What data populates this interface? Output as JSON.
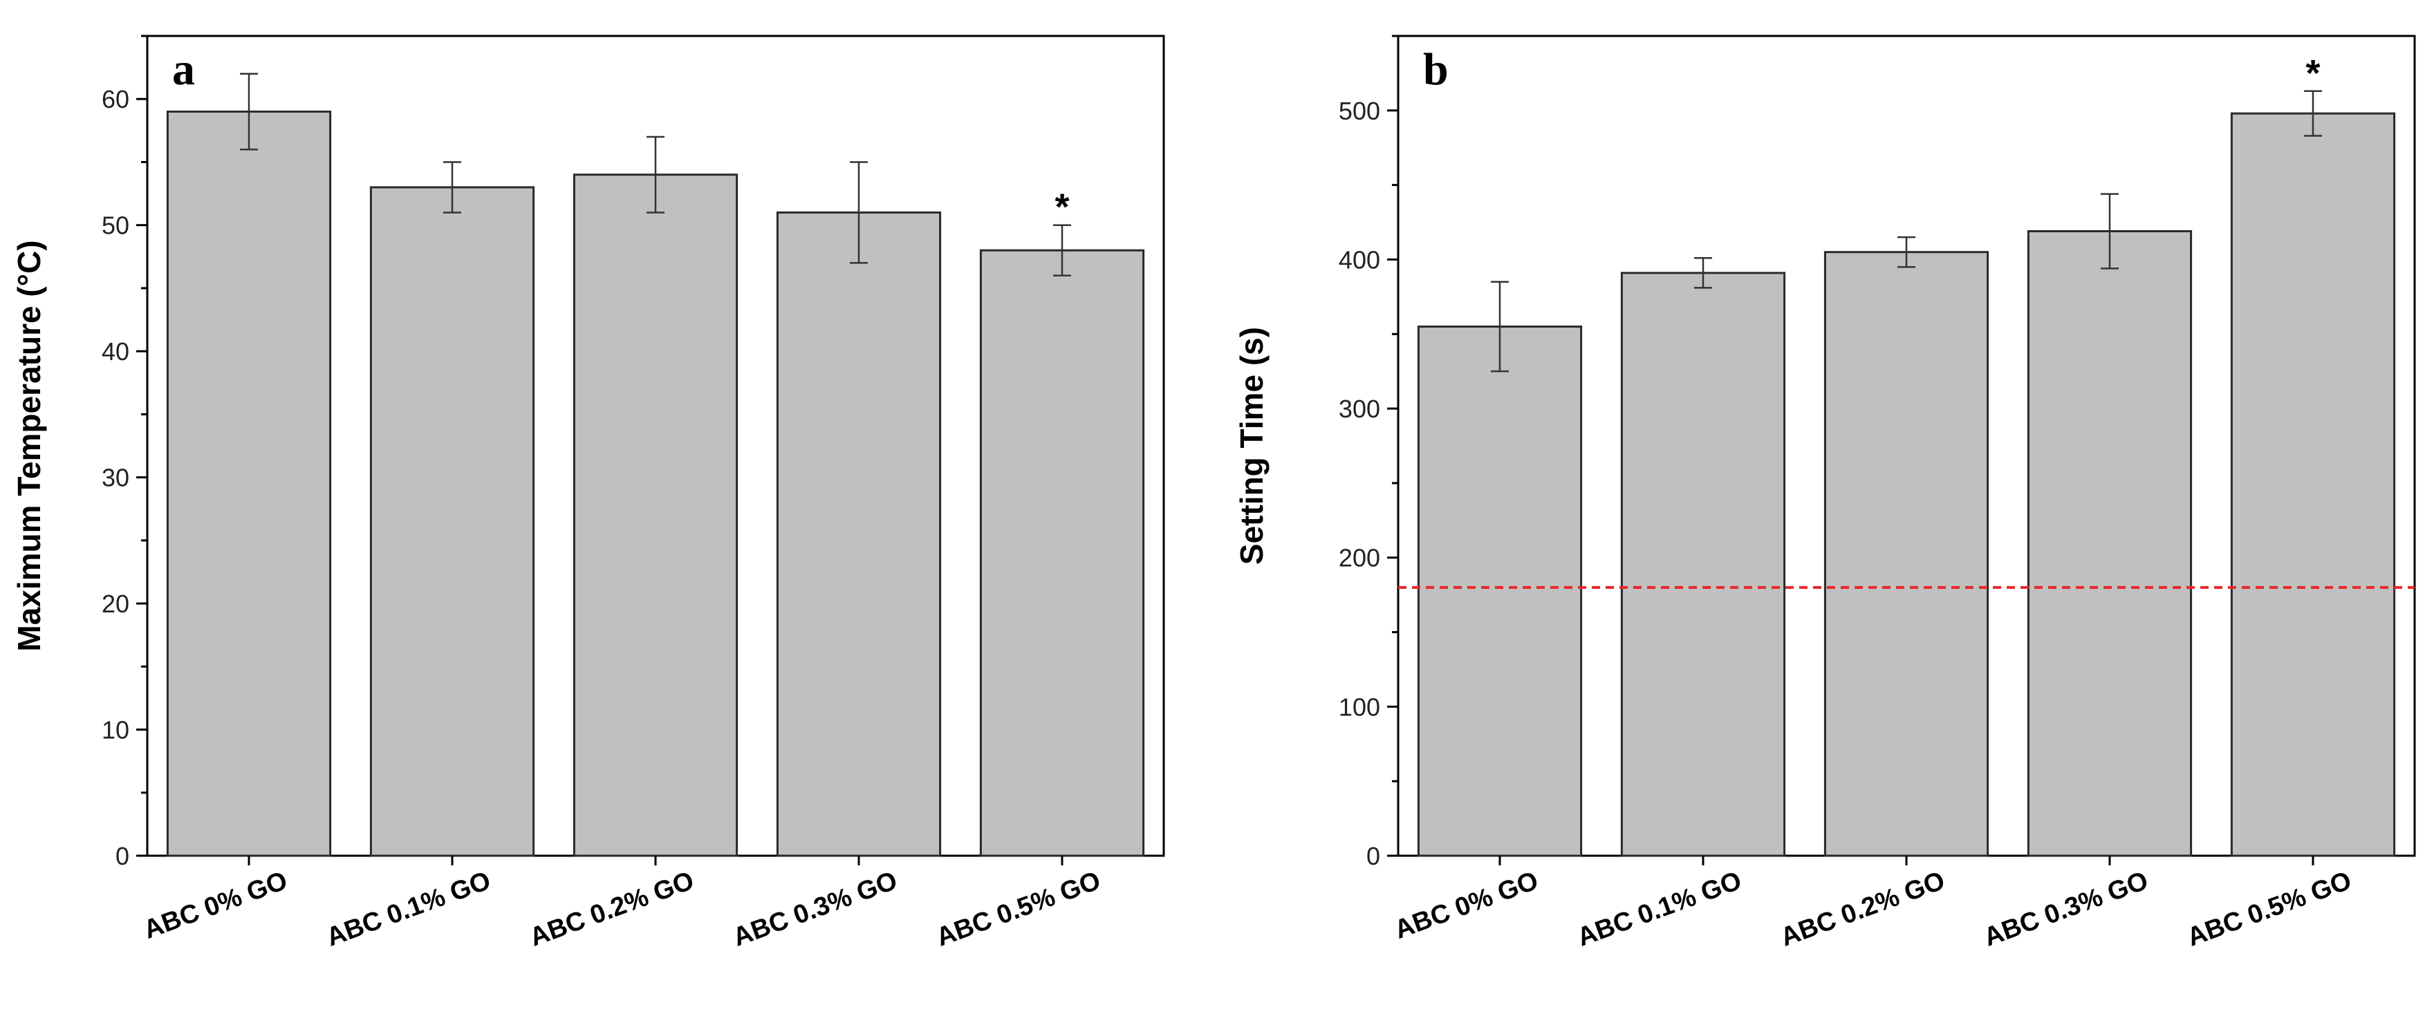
{
  "chart_data": [
    {
      "type": "bar",
      "panel": "a",
      "title": "",
      "xlabel": "",
      "ylabel": "Maximum Temperature (°C)",
      "categories": [
        "ABC 0% GO",
        "ABC 0.1% GO",
        "ABC 0.2% GO",
        "ABC 0.3% GO",
        "ABC 0.5% GO"
      ],
      "values": [
        59,
        53,
        54,
        51,
        48
      ],
      "errors": [
        3,
        2,
        3,
        4,
        2
      ],
      "significance": [
        "",
        "",
        "",
        "",
        "*"
      ],
      "ylim": [
        0,
        65
      ],
      "yticks": [
        0,
        10,
        20,
        30,
        40,
        50,
        60
      ],
      "reference_line": null,
      "grid": false,
      "legend": "none"
    },
    {
      "type": "bar",
      "panel": "b",
      "title": "",
      "xlabel": "",
      "ylabel": "Setting Time (s)",
      "categories": [
        "ABC 0% GO",
        "ABC 0.1% GO",
        "ABC 0.2% GO",
        "ABC 0.3% GO",
        "ABC 0.5% GO"
      ],
      "values": [
        355,
        391,
        405,
        419,
        498
      ],
      "errors": [
        30,
        10,
        10,
        25,
        15
      ],
      "significance": [
        "",
        "",
        "",
        "",
        "*"
      ],
      "ylim": [
        0,
        550
      ],
      "yticks": [
        0,
        100,
        200,
        300,
        400,
        500
      ],
      "reference_line": 180,
      "grid": false,
      "legend": "none"
    }
  ],
  "colors": {
    "bar_fill": "#c0c0c0",
    "bar_stroke": "#2a2a2a",
    "axis": "#000000",
    "error_bar": "#333333",
    "reference_line": "#e8262b"
  }
}
